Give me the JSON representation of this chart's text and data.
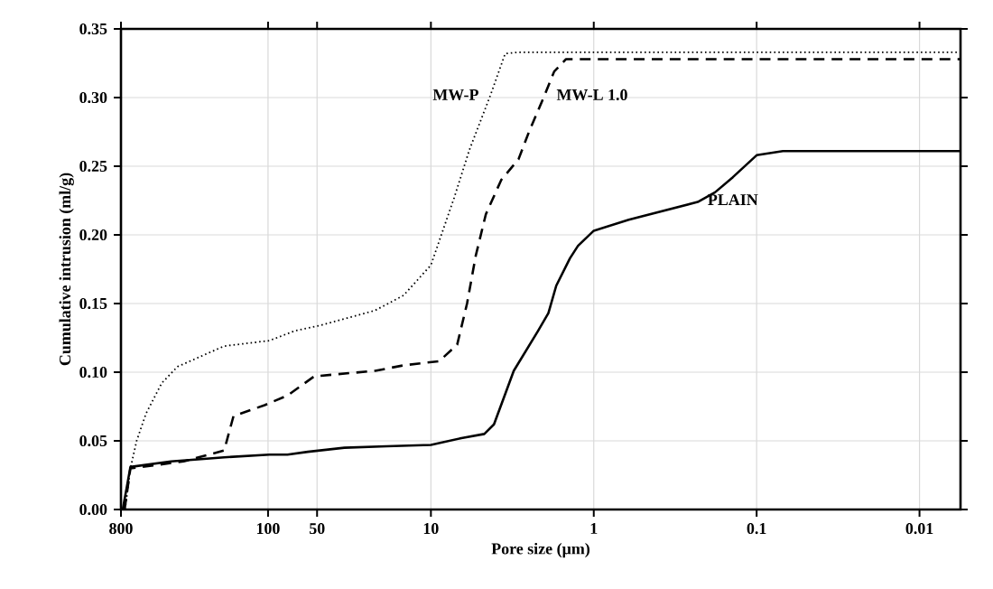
{
  "chart_data": {
    "type": "line",
    "xlabel": "Pore size (µm)",
    "ylabel": "Cumulative intrusion (ml/g)",
    "log": "x",
    "grid": true,
    "marker": "none",
    "xlim": [
      800,
      0.0056
    ],
    "ylim": [
      0,
      0.35
    ],
    "xticks": [
      800,
      100,
      50,
      10,
      1,
      0.1,
      0.01
    ],
    "yticks": [
      {
        "value": 0,
        "label": "0.00"
      },
      {
        "value": 0.05,
        "label": "0.05"
      },
      {
        "value": 0.1,
        "label": "0.10"
      },
      {
        "value": 0.15,
        "label": "0.15"
      },
      {
        "value": 0.2,
        "label": "0.20"
      },
      {
        "value": 0.25,
        "label": "0.25"
      },
      {
        "value": 0.3,
        "label": "0.30"
      },
      {
        "value": 0.35,
        "label": "0.35"
      }
    ],
    "series": [
      {
        "name": "MW-P",
        "color": "#000000",
        "line_style": "dotted",
        "x": [
          755,
          700,
          641,
          561,
          450,
          360,
          186,
          98,
          69,
          48,
          22,
          14.7,
          10,
          7.2,
          5.8,
          4.3,
          3.5,
          2.9,
          0.0056
        ],
        "values": [
          0,
          0.03,
          0.05,
          0.07,
          0.092,
          0.104,
          0.119,
          0.123,
          0.13,
          0.134,
          0.145,
          0.156,
          0.178,
          0.227,
          0.262,
          0.302,
          0.332,
          0.333,
          0.333
        ]
      },
      {
        "name": "MW-L 1.0",
        "color": "#000000",
        "line_style": "dashed",
        "x": [
          760,
          700,
          330,
          186,
          163,
          105,
          76,
          52,
          22,
          14.7,
          8.9,
          6.9,
          6.0,
          5.3,
          4.6,
          3.7,
          2.9,
          2.5,
          2.0,
          1.75,
          1.48,
          0.0056
        ],
        "values": [
          0,
          0.03,
          0.035,
          0.043,
          0.068,
          0.076,
          0.083,
          0.097,
          0.101,
          0.105,
          0.108,
          0.12,
          0.15,
          0.185,
          0.215,
          0.24,
          0.255,
          0.275,
          0.302,
          0.319,
          0.328,
          0.328
        ]
      },
      {
        "name": "PLAIN",
        "color": "#000000",
        "line_style": "solid",
        "x": [
          780,
          700,
          394,
          186,
          98,
          76,
          57,
          34,
          18.7,
          10,
          6.5,
          4.7,
          4.1,
          3.5,
          3.1,
          2.2,
          1.9,
          1.7,
          1.4,
          1.25,
          1,
          0.61,
          0.23,
          0.18,
          0.14,
          0.1,
          0.069,
          0.0056
        ],
        "values": [
          0,
          0.031,
          0.035,
          0.038,
          0.04,
          0.04,
          0.042,
          0.045,
          0.046,
          0.047,
          0.052,
          0.055,
          0.062,
          0.084,
          0.101,
          0.13,
          0.143,
          0.163,
          0.183,
          0.192,
          0.203,
          0.211,
          0.224,
          0.231,
          0.242,
          0.258,
          0.261,
          0.261
        ]
      }
    ]
  }
}
